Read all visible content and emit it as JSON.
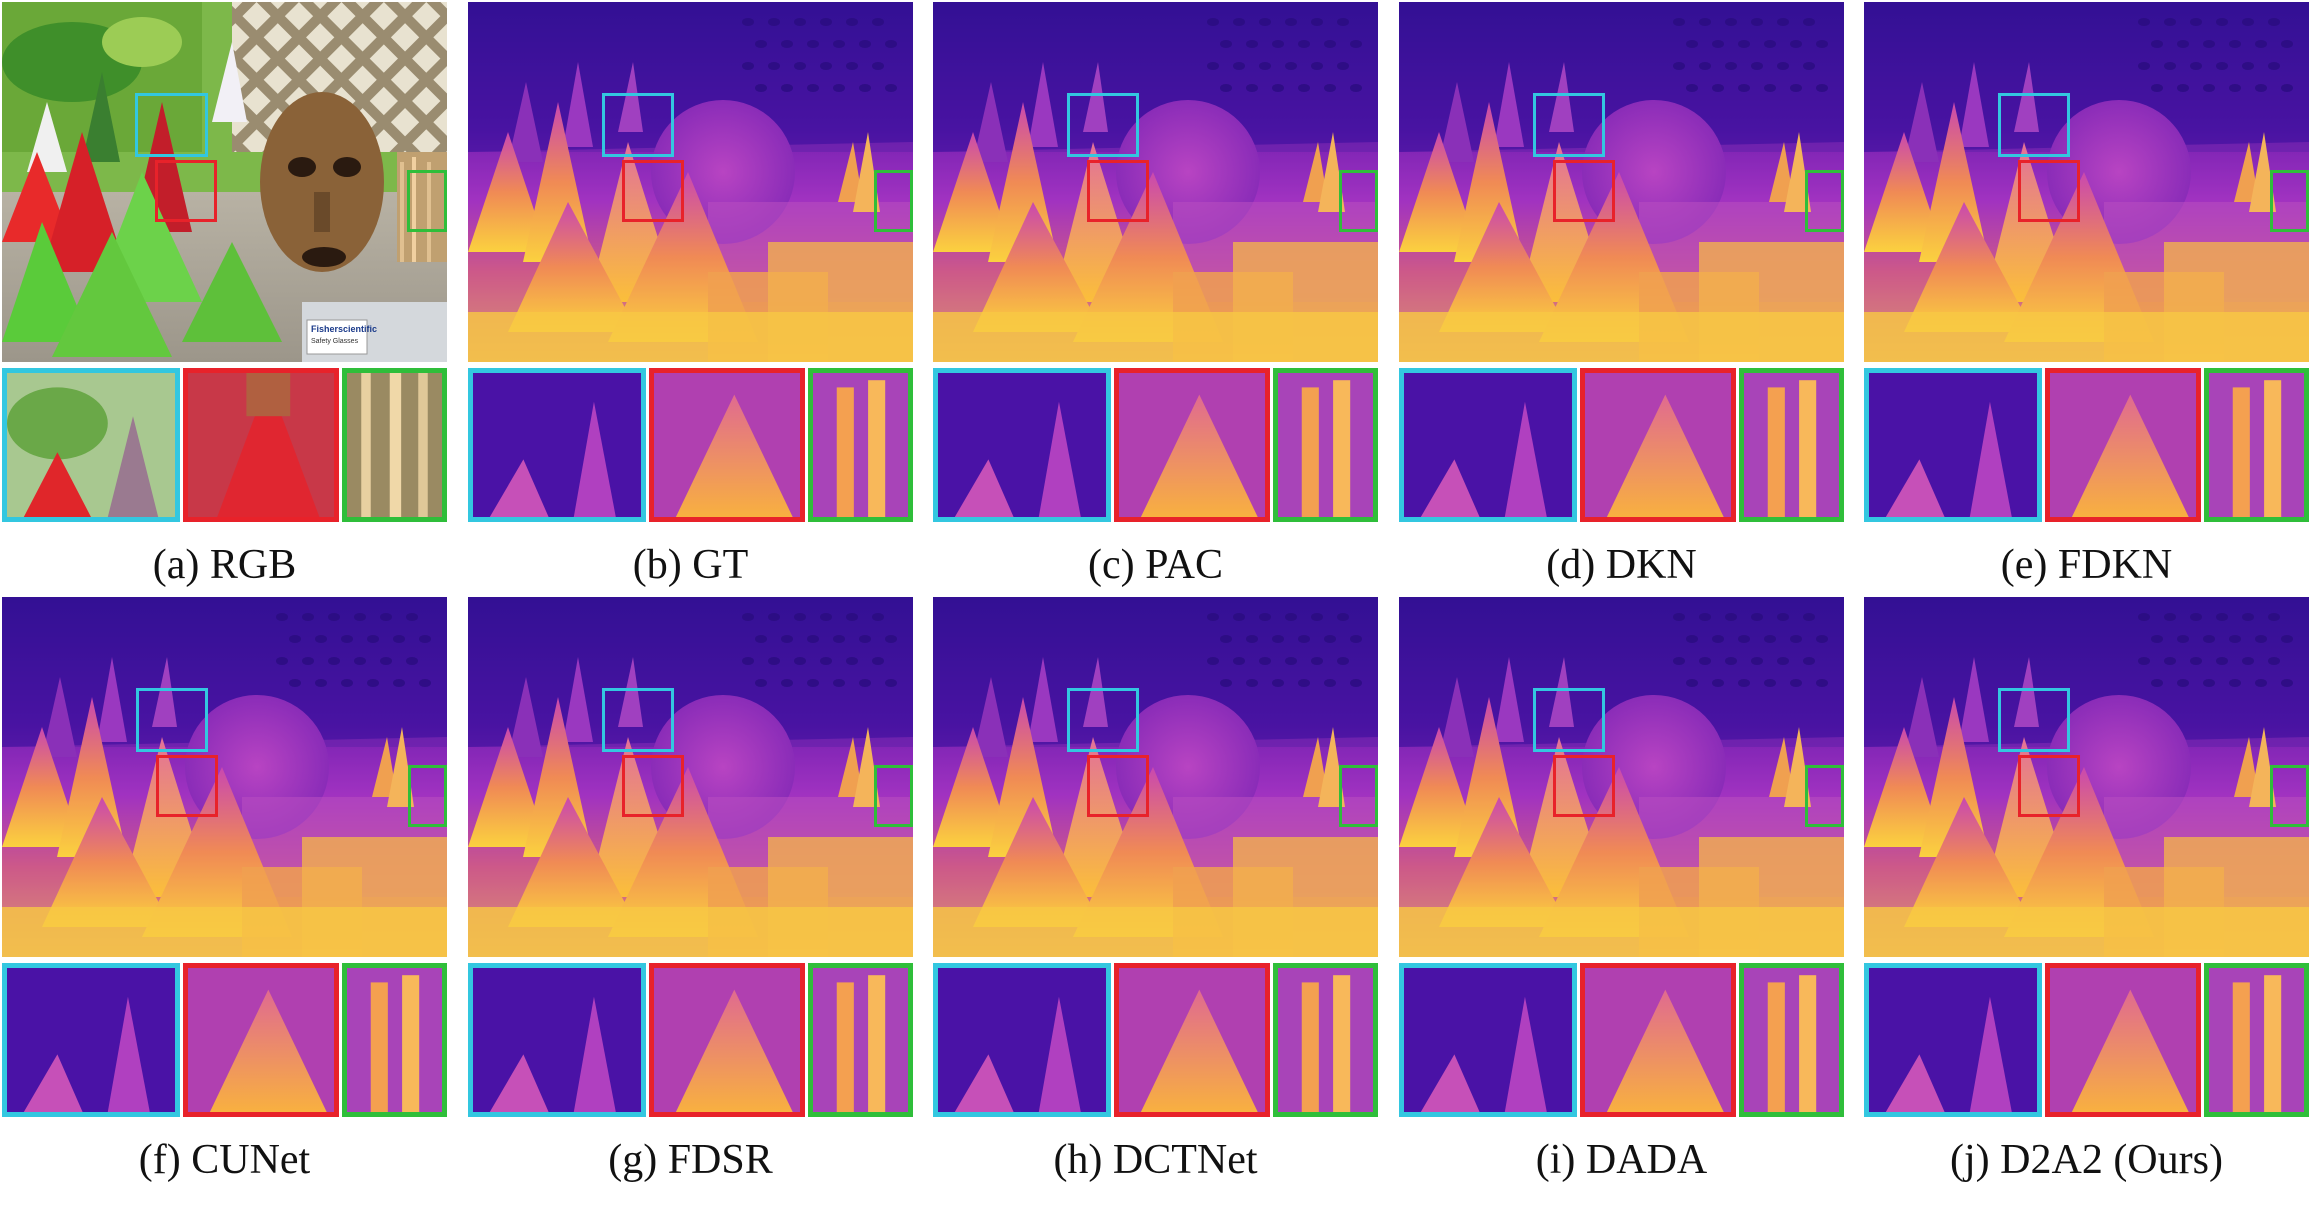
{
  "figure": {
    "captions": [
      "(a) RGB",
      "(b) GT",
      "(c) PAC",
      "(d) DKN",
      "(e) FDKN",
      "(f) CUNet",
      "(g) FDSR",
      "(h) DCTNet",
      "(i) DADA",
      "(j) D2A2 (Ours)"
    ],
    "rgb_label": {
      "line1": "Fisherscientific",
      "line2": "Safety Glasses"
    },
    "colors": {
      "cyan_box": "#33c7e0",
      "red_box": "#e8222a",
      "green_box": "#2fbe3a",
      "depth_far": "#3b0f9a",
      "depth_mid": "#b43cc8",
      "depth_near": "#fbd540"
    }
  }
}
